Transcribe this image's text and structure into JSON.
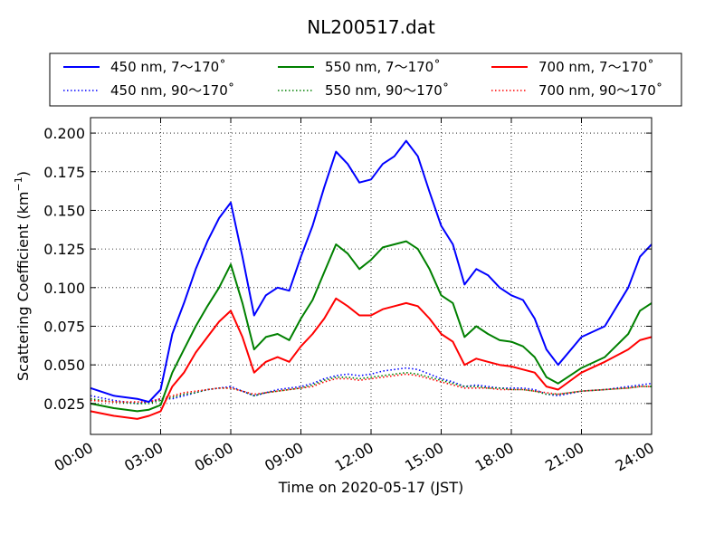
{
  "chart_data": {
    "type": "line",
    "title": "NL200517.dat",
    "xlabel": "Time on 2020-05-17 (JST)",
    "ylabel": "Scattering Coefficient (km",
    "ylabel_sup": "−1",
    "ylabel_tail": ")",
    "xlim": [
      "00:00",
      "24:00"
    ],
    "ylim": [
      0.005,
      0.21
    ],
    "xticks": [
      "00:00",
      "03:00",
      "06:00",
      "09:00",
      "12:00",
      "15:00",
      "18:00",
      "21:00",
      "24:00"
    ],
    "yticks": [
      "0.025",
      "0.050",
      "0.075",
      "0.100",
      "0.125",
      "0.150",
      "0.175",
      "0.200"
    ],
    "grid": true,
    "legend_position": "top",
    "x": [
      "00:00",
      "01:00",
      "02:00",
      "02:30",
      "03:00",
      "03:30",
      "04:00",
      "04:30",
      "05:00",
      "05:30",
      "06:00",
      "06:30",
      "07:00",
      "07:30",
      "08:00",
      "08:30",
      "09:00",
      "09:30",
      "10:00",
      "10:30",
      "11:00",
      "11:30",
      "12:00",
      "12:30",
      "13:00",
      "13:30",
      "14:00",
      "14:30",
      "15:00",
      "15:30",
      "16:00",
      "16:30",
      "17:00",
      "17:30",
      "18:00",
      "18:30",
      "19:00",
      "19:30",
      "20:00",
      "21:00",
      "22:00",
      "23:00",
      "23:30",
      "24:00"
    ],
    "series": [
      {
        "name": "450 nm, 7～170˚",
        "color": "#0000ff",
        "style": "solid",
        "values": [
          0.035,
          0.03,
          0.028,
          0.026,
          0.034,
          0.07,
          0.09,
          0.112,
          0.13,
          0.145,
          0.155,
          0.12,
          0.082,
          0.095,
          0.1,
          0.098,
          0.12,
          0.14,
          0.165,
          0.188,
          0.18,
          0.168,
          0.17,
          0.18,
          0.185,
          0.195,
          0.185,
          0.162,
          0.14,
          0.128,
          0.102,
          0.112,
          0.108,
          0.1,
          0.095,
          0.092,
          0.08,
          0.06,
          0.05,
          0.068,
          0.075,
          0.1,
          0.12,
          0.128
        ]
      },
      {
        "name": "550 nm, 7～170˚",
        "color": "#008000",
        "style": "solid",
        "values": [
          0.025,
          0.022,
          0.02,
          0.021,
          0.024,
          0.045,
          0.06,
          0.075,
          0.088,
          0.1,
          0.115,
          0.09,
          0.06,
          0.068,
          0.07,
          0.066,
          0.08,
          0.092,
          0.11,
          0.128,
          0.122,
          0.112,
          0.118,
          0.126,
          0.128,
          0.13,
          0.125,
          0.112,
          0.095,
          0.09,
          0.068,
          0.075,
          0.07,
          0.066,
          0.065,
          0.062,
          0.055,
          0.042,
          0.038,
          0.048,
          0.055,
          0.07,
          0.085,
          0.09
        ]
      },
      {
        "name": "700 nm, 7～170˚",
        "color": "#ff0000",
        "style": "solid",
        "values": [
          0.02,
          0.017,
          0.015,
          0.017,
          0.02,
          0.036,
          0.045,
          0.058,
          0.068,
          0.078,
          0.085,
          0.068,
          0.045,
          0.052,
          0.055,
          0.052,
          0.062,
          0.07,
          0.08,
          0.093,
          0.088,
          0.082,
          0.082,
          0.086,
          0.088,
          0.09,
          0.088,
          0.08,
          0.07,
          0.065,
          0.05,
          0.054,
          0.052,
          0.05,
          0.049,
          0.047,
          0.045,
          0.036,
          0.034,
          0.045,
          0.052,
          0.06,
          0.066,
          0.068
        ]
      },
      {
        "name": "450 nm, 90～170˚",
        "color": "#0000ff",
        "style": "dotted",
        "values": [
          0.03,
          0.027,
          0.025,
          0.026,
          0.028,
          0.028,
          0.03,
          0.032,
          0.034,
          0.035,
          0.036,
          0.033,
          0.03,
          0.032,
          0.034,
          0.035,
          0.036,
          0.038,
          0.041,
          0.043,
          0.044,
          0.043,
          0.044,
          0.046,
          0.047,
          0.048,
          0.047,
          0.044,
          0.041,
          0.039,
          0.036,
          0.037,
          0.036,
          0.035,
          0.035,
          0.035,
          0.034,
          0.031,
          0.03,
          0.033,
          0.034,
          0.036,
          0.037,
          0.038
        ]
      },
      {
        "name": "550 nm, 90～170˚",
        "color": "#008000",
        "style": "dotted",
        "values": [
          0.028,
          0.026,
          0.025,
          0.025,
          0.027,
          0.029,
          0.031,
          0.032,
          0.034,
          0.035,
          0.035,
          0.033,
          0.03,
          0.032,
          0.033,
          0.034,
          0.035,
          0.037,
          0.04,
          0.042,
          0.042,
          0.041,
          0.042,
          0.043,
          0.044,
          0.045,
          0.044,
          0.042,
          0.04,
          0.038,
          0.036,
          0.036,
          0.035,
          0.035,
          0.034,
          0.034,
          0.033,
          0.031,
          0.031,
          0.033,
          0.034,
          0.035,
          0.036,
          0.036
        ]
      },
      {
        "name": "700 nm, 90～170˚",
        "color": "#ff0000",
        "style": "dotted",
        "values": [
          0.027,
          0.026,
          0.026,
          0.026,
          0.028,
          0.03,
          0.032,
          0.033,
          0.034,
          0.035,
          0.035,
          0.033,
          0.031,
          0.032,
          0.033,
          0.034,
          0.035,
          0.036,
          0.039,
          0.041,
          0.041,
          0.04,
          0.041,
          0.042,
          0.043,
          0.044,
          0.043,
          0.041,
          0.039,
          0.037,
          0.035,
          0.035,
          0.035,
          0.034,
          0.034,
          0.034,
          0.033,
          0.032,
          0.031,
          0.033,
          0.034,
          0.035,
          0.036,
          0.036
        ]
      }
    ]
  }
}
